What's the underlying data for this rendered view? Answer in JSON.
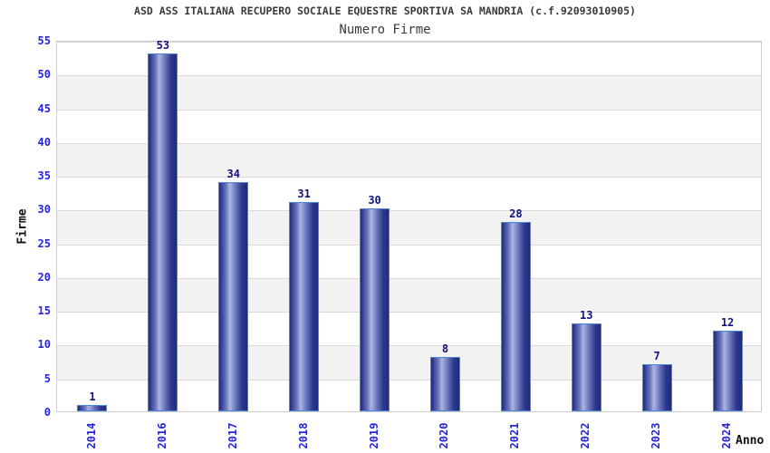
{
  "chart_data": {
    "type": "bar",
    "title": "ASD ASS ITALIANA RECUPERO SOCIALE EQUESTRE SPORTIVA SA MANDRIA (c.f.92093010905)",
    "subtitle": "Numero Firme",
    "xlabel": "Anno",
    "ylabel": "Firme",
    "categories": [
      "2014",
      "2016",
      "2017",
      "2018",
      "2019",
      "2020",
      "2021",
      "2022",
      "2023",
      "2024"
    ],
    "values": [
      1,
      53,
      34,
      31,
      30,
      8,
      28,
      13,
      7,
      12
    ],
    "ylim": [
      0,
      55
    ],
    "ytick_step": 5,
    "grid": true,
    "legend_position": "none",
    "colors": {
      "tick_label": "#2525dd",
      "value_label": "#12127a",
      "bar_dark": "#1e2a7d",
      "bar_mid": "#6a77bd",
      "bar_light": "#adb6e2",
      "bar_shade": "#2e3a8e",
      "bar_border": "#4e85d6",
      "band": "#f2f2f2",
      "gridline": "#d9d9d9",
      "plot_border": "#cccccc",
      "title_text": "#3a3a3a",
      "axis_title_text": "#111111",
      "background": "#ffffff"
    }
  }
}
